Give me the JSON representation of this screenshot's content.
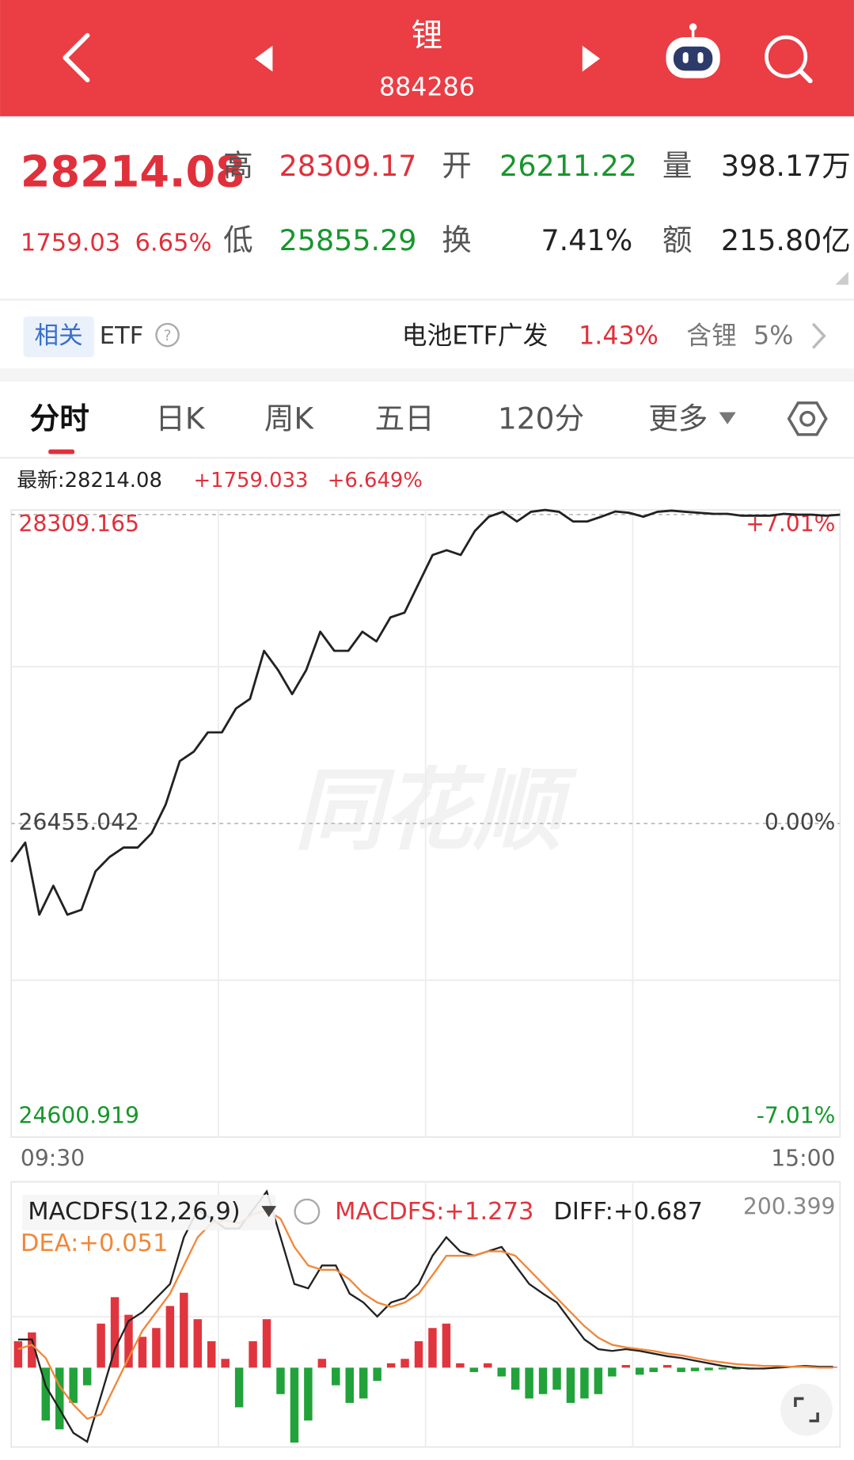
{
  "header": {
    "title": "锂",
    "code": "884286"
  },
  "quote": {
    "price": "28214.08",
    "change": "1759.03",
    "change_pct": "6.65%",
    "fields": [
      {
        "label": "高",
        "value": "28309.17",
        "color": "#e0303b"
      },
      {
        "label": "开",
        "value": "26211.22",
        "color": "#17962c"
      },
      {
        "label": "量",
        "value": "398.17万",
        "color": "#222222"
      },
      {
        "label": "低",
        "value": "25855.29",
        "color": "#17962c"
      },
      {
        "label": "换",
        "value": "7.41%",
        "color": "#222222"
      },
      {
        "label": "额",
        "value": "215.80亿",
        "color": "#222222"
      }
    ]
  },
  "etf": {
    "badge": "相关",
    "label": "ETF",
    "fund": "电池ETF广发",
    "fund_change": "1.43%",
    "holding_label": "含锂",
    "holding": "5%"
  },
  "tabs": [
    "分时",
    "日K",
    "周K",
    "五日",
    "120分",
    "更多"
  ],
  "watermark": "同花顺",
  "chart_data": [
    {
      "type": "line",
      "readout": [
        "最新:28214.08",
        "+1759.033",
        "+6.649%"
      ],
      "color": "#222222",
      "categories": [
        "09:30",
        null,
        null,
        null,
        null,
        null,
        null,
        null,
        null,
        null,
        null,
        null,
        null,
        null,
        null,
        null,
        null,
        null,
        null,
        null,
        null,
        null,
        null,
        null,
        null,
        null,
        null,
        null,
        null,
        null,
        null,
        null,
        null,
        null,
        null,
        null,
        null,
        null,
        null,
        null,
        null,
        null,
        null,
        null,
        null,
        null,
        null,
        null,
        null,
        null,
        null,
        null,
        null,
        null,
        null,
        null,
        null,
        null,
        null,
        "15:00"
      ],
      "values": [
        26228,
        26342,
        25916,
        26087,
        25916,
        25945,
        26172,
        26257,
        26313,
        26313,
        26398,
        26568,
        26824,
        26880,
        26994,
        26994,
        27135,
        27192,
        27476,
        27362,
        27220,
        27362,
        27589,
        27476,
        27476,
        27589,
        27532,
        27674,
        27702,
        27873,
        28043,
        28071,
        28043,
        28184,
        28269,
        28298,
        28241,
        28298,
        28309,
        28298,
        28241,
        28241,
        28269,
        28300,
        28292,
        28269,
        28298,
        28305,
        28298,
        28292,
        28286,
        28286,
        28275,
        28275,
        28275,
        28286,
        28281,
        28281,
        28275,
        28281
      ],
      "ylim": [
        24600.919,
        28309.165
      ],
      "yticks": [
        24600.919,
        26455.042,
        28309.165
      ],
      "y2lim": [
        -7.01,
        7.01
      ],
      "y2ticks": [
        {
          "value": -7.01,
          "label": "-7.01%"
        },
        {
          "value": 0,
          "label": "0.00%"
        },
        {
          "value": 7.01,
          "label": "+7.01%"
        }
      ],
      "grid": true
    },
    {
      "type": "combo",
      "title": "MACDFS(12,26,9)",
      "ylim": [
        -90,
        200.399
      ],
      "yticks": [
        200.399
      ],
      "series": [
        {
          "type": "bar",
          "readout": "MACDFS:+1.273",
          "color": "#e0353e",
          "negative_color": "#22a23a",
          "values": [
            30,
            40,
            -60,
            -70,
            -40,
            -20,
            50,
            80,
            60,
            35,
            45,
            70,
            85,
            55,
            30,
            10,
            -45,
            30,
            55,
            -30,
            -85,
            -60,
            10,
            -20,
            -40,
            -35,
            -15,
            5,
            10,
            30,
            45,
            50,
            5,
            -5,
            5,
            -10,
            -25,
            -35,
            -30,
            -25,
            -40,
            -35,
            -30,
            -10,
            3,
            -8,
            -5,
            3,
            -5,
            -4,
            -3,
            -2,
            -2,
            -2,
            -1,
            1,
            2,
            2,
            1,
            1
          ]
        },
        {
          "type": "line",
          "readout": "DIFF:+0.687",
          "color": "#222222",
          "values": [
            32,
            32,
            -21,
            -47,
            -74,
            -84,
            -32,
            21,
            53,
            63,
            79,
            95,
            148,
            179,
            169,
            158,
            158,
            179,
            200,
            148,
            95,
            90,
            116,
            116,
            84,
            74,
            58,
            74,
            79,
            95,
            127,
            148,
            132,
            127,
            132,
            137,
            116,
            95,
            84,
            74,
            53,
            32,
            21,
            19,
            21,
            19,
            16,
            13,
            11,
            8,
            5,
            2,
            0,
            -1,
            -1,
            0,
            1,
            2,
            1,
            1
          ]
        },
        {
          "type": "line",
          "readout": "DEA:+0.051",
          "color": "#f0883a",
          "values": [
            21,
            26,
            11,
            -21,
            -42,
            -58,
            -53,
            -21,
            11,
            42,
            63,
            84,
            116,
            148,
            164,
            167,
            164,
            174,
            179,
            169,
            137,
            116,
            111,
            111,
            100,
            84,
            74,
            69,
            74,
            84,
            105,
            127,
            127,
            127,
            132,
            132,
            127,
            111,
            95,
            79,
            63,
            47,
            34,
            26,
            23,
            21,
            19,
            16,
            14,
            11,
            8,
            6,
            4,
            3,
            2,
            2,
            1,
            1,
            0,
            0
          ]
        }
      ]
    }
  ]
}
